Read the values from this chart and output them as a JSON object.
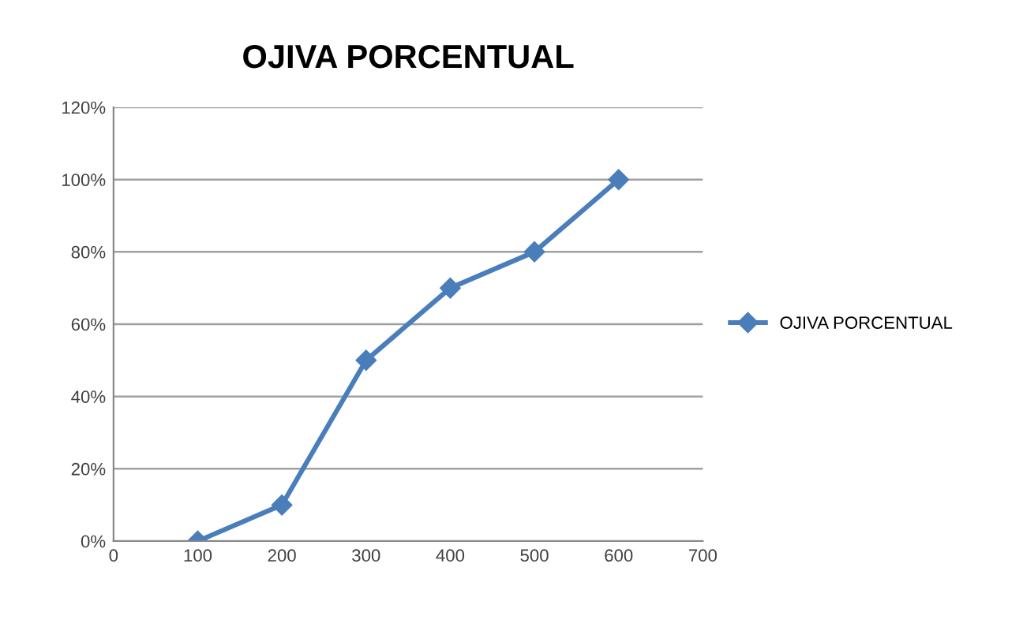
{
  "chart_data": {
    "type": "line",
    "title": "OJIVA PORCENTUAL",
    "x": [
      100,
      200,
      300,
      400,
      500,
      600
    ],
    "series": [
      {
        "name": "OJIVA PORCENTUAL",
        "color": "#4a7ebb",
        "values": [
          0,
          10,
          50,
          70,
          80,
          100
        ]
      }
    ],
    "xlim": [
      0,
      700
    ],
    "xticks": [
      0,
      100,
      200,
      300,
      400,
      500,
      600,
      700
    ],
    "ylim": [
      0,
      120
    ],
    "yticks": [
      {
        "value": 0,
        "label": "0%"
      },
      {
        "value": 20,
        "label": "20%"
      },
      {
        "value": 40,
        "label": "40%"
      },
      {
        "value": 60,
        "label": "60%"
      },
      {
        "value": 80,
        "label": "80%"
      },
      {
        "value": 100,
        "label": "100%"
      },
      {
        "value": 120,
        "label": "120%"
      }
    ],
    "grid": "y",
    "legend": "right",
    "marker": "diamond",
    "line_style": "solid"
  }
}
